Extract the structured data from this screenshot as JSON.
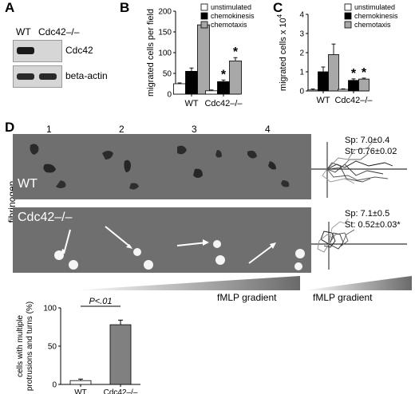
{
  "panels": {
    "a": "A",
    "b": "B",
    "c": "C",
    "d": "D"
  },
  "panel_a": {
    "lanes": [
      "WT",
      "Cdc42–/–"
    ],
    "bands": [
      "Cdc42",
      "beta-actin"
    ],
    "band_presence": {
      "Cdc42": [
        1,
        0
      ],
      "beta-actin": [
        1,
        1
      ]
    }
  },
  "panel_d": {
    "frame_numbers": [
      "1",
      "2",
      "3",
      "4"
    ],
    "row_labels": [
      "WT",
      "Cdc42–/–"
    ],
    "side_label": "fibrinogen",
    "gradient_label": "fMLP gradient",
    "tracks_gradient_label": "fMLP gradient",
    "wt_stats": [
      "Sp: 7.0±0.4",
      "St: 0.76±0.02"
    ],
    "ko_stats": [
      "Sp: 7.1±0.5",
      "St: 0.52±0.03*"
    ]
  },
  "chart_data": [
    {
      "id": "B",
      "type": "bar",
      "ylabel": "migrated cells per field",
      "ylim": [
        0,
        200
      ],
      "yticks": [
        0,
        50,
        100,
        150,
        200
      ],
      "categories": [
        "WT",
        "Cdc42–/–"
      ],
      "legend_position": "top-right",
      "series": [
        {
          "name": "unstimulated",
          "color": "#ffffff",
          "values": [
            25,
            8
          ],
          "errors": [
            2,
            2
          ]
        },
        {
          "name": "chemokinesis",
          "color": "#000000",
          "values": [
            55,
            30
          ],
          "errors": [
            8,
            4
          ]
        },
        {
          "name": "chemotaxis",
          "color": "#a8a8a8",
          "values": [
            167,
            80
          ],
          "errors": [
            5,
            8
          ]
        }
      ],
      "annotations": [
        {
          "category": 1,
          "series": 1,
          "text": "*"
        },
        {
          "category": 1,
          "series": 2,
          "text": "*"
        }
      ]
    },
    {
      "id": "C",
      "type": "bar",
      "ylabel": "migrated cells x 10",
      "ylabel_exponent": "4",
      "ylim": [
        0,
        4
      ],
      "yticks": [
        0,
        1,
        2,
        3,
        4
      ],
      "categories": [
        "WT",
        "Cdc42–/–"
      ],
      "legend_position": "top-right",
      "series": [
        {
          "name": "unstimulated",
          "color": "#ffffff",
          "values": [
            0.05,
            0.08
          ],
          "errors": [
            0.05,
            0.03
          ]
        },
        {
          "name": "chemokinesis",
          "color": "#000000",
          "values": [
            1.0,
            0.55
          ],
          "errors": [
            0.25,
            0.08
          ]
        },
        {
          "name": "chemotaxis",
          "color": "#a8a8a8",
          "values": [
            1.9,
            0.62
          ],
          "errors": [
            0.55,
            0.05
          ]
        }
      ],
      "annotations": [
        {
          "category": 1,
          "series": 1,
          "text": "*"
        },
        {
          "category": 1,
          "series": 2,
          "text": "*"
        }
      ]
    },
    {
      "id": "D-bottom",
      "type": "bar",
      "ylabel_lines": [
        "cells with multiple",
        "protrusions and turns (%)"
      ],
      "ylim": [
        0,
        100
      ],
      "yticks": [
        0,
        50,
        100
      ],
      "categories": [
        "WT",
        "Cdc42–/–"
      ],
      "values": [
        5,
        78
      ],
      "errors": [
        2,
        6
      ],
      "colors": [
        "#ffffff",
        "#808080"
      ],
      "significance": "P<.01"
    }
  ]
}
